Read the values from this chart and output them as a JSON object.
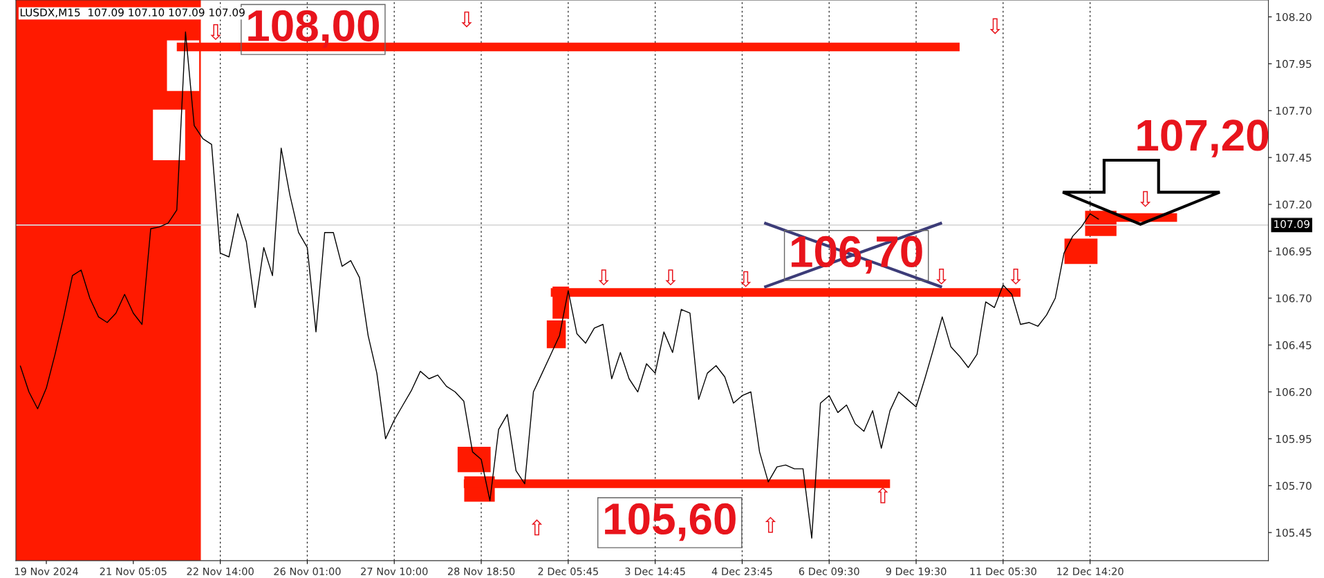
{
  "chart_data": {
    "type": "line",
    "title": "LUSDX,M15  107.09 107.10 107.09 107.09",
    "categories": [
      null,
      null,
      null,
      "19 Nov 2024",
      null,
      null,
      null,
      null,
      null,
      null,
      null,
      null,
      null,
      "21 Nov 05:05",
      null,
      null,
      null,
      null,
      null,
      null,
      null,
      null,
      null,
      "22 Nov 14:00",
      null,
      null,
      null,
      null,
      null,
      null,
      null,
      null,
      null,
      "26 Nov 01:00",
      null,
      null,
      null,
      null,
      null,
      null,
      null,
      null,
      null,
      "27 Nov 10:00",
      null,
      null,
      null,
      null,
      null,
      null,
      null,
      null,
      null,
      "28 Nov 18:50",
      null,
      null,
      null,
      null,
      null,
      null,
      null,
      null,
      null,
      "2 Dec 05:45",
      null,
      null,
      null,
      null,
      null,
      null,
      null,
      null,
      null,
      "3 Dec 14:45",
      null,
      null,
      null,
      null,
      null,
      null,
      null,
      null,
      null,
      "4 Dec 23:45",
      null,
      null,
      null,
      null,
      null,
      null,
      null,
      null,
      null,
      "6 Dec 09:30",
      null,
      null,
      null,
      null,
      null,
      null,
      null,
      null,
      null,
      "9 Dec 19:30",
      null,
      null,
      null,
      null,
      null,
      null,
      null,
      null,
      null,
      "11 Dec 05:30",
      null,
      null,
      null,
      null,
      null,
      null,
      null,
      null,
      null,
      "12 Dec 14:20",
      null,
      null,
      null,
      null,
      null,
      null,
      null,
      null,
      null,
      null,
      null,
      null,
      null,
      null,
      null,
      null,
      null,
      null,
      null,
      null
    ],
    "ylim": [
      105.3,
      108.29
    ],
    "yticks": [
      {
        "value": 105.45,
        "label": "105.45"
      },
      {
        "value": 105.7,
        "label": "105.70"
      },
      {
        "value": 105.95,
        "label": "105.95"
      },
      {
        "value": 106.2,
        "label": "106.20"
      },
      {
        "value": 106.45,
        "label": "106.45"
      },
      {
        "value": 106.7,
        "label": "106.70"
      },
      {
        "value": 106.95,
        "label": "106.95"
      },
      {
        "value": 107.2,
        "label": "107.20"
      },
      {
        "value": 107.45,
        "label": "107.45"
      },
      {
        "value": 107.7,
        "label": "107.70"
      },
      {
        "value": 107.95,
        "label": "107.95"
      },
      {
        "value": 108.2,
        "label": "108.20"
      }
    ],
    "grid": "x",
    "ref_lines": [
      {
        "axis": "y",
        "value": 107.09,
        "label": "107.09",
        "color": "#d8d8d8"
      }
    ],
    "series": [
      {
        "color": "#000000",
        "values": [
          106.34,
          106.2,
          106.11,
          106.22,
          106.4,
          106.6,
          106.82,
          106.85,
          106.7,
          106.6,
          106.57,
          106.62,
          106.72,
          106.62,
          106.56,
          107.07,
          107.08,
          107.1,
          107.17,
          108.12,
          107.62,
          107.55,
          107.52,
          106.94,
          106.92,
          107.15,
          107.0,
          106.65,
          106.97,
          106.82,
          107.5,
          107.25,
          107.05,
          106.97,
          106.52,
          107.05,
          107.05,
          106.87,
          106.9,
          106.81,
          106.5,
          106.3,
          105.95,
          106.05,
          106.13,
          106.21,
          106.31,
          106.27,
          106.29,
          106.23,
          106.2,
          106.15,
          105.88,
          105.84,
          105.62,
          106.0,
          106.08,
          105.78,
          105.71,
          106.2,
          106.3,
          106.4,
          106.5,
          106.74,
          106.51,
          106.46,
          106.54,
          106.56,
          106.27,
          106.41,
          106.27,
          106.2,
          106.35,
          106.3,
          106.52,
          106.41,
          106.64,
          106.62,
          106.16,
          106.3,
          106.34,
          106.28,
          106.14,
          106.18,
          106.2,
          105.88,
          105.72,
          105.8,
          105.81,
          105.79,
          105.79,
          105.42,
          106.14,
          106.18,
          106.09,
          106.13,
          106.03,
          105.99,
          106.1,
          105.9,
          106.1,
          106.2,
          106.16,
          106.12,
          106.27,
          106.43,
          106.6,
          106.44,
          106.39,
          106.33,
          106.4,
          106.68,
          106.65,
          106.77,
          106.72,
          106.56,
          106.57,
          106.55,
          106.61,
          106.7,
          106.94,
          107.03,
          107.08,
          107.15,
          107.12,
          null,
          null,
          null,
          null,
          null,
          null,
          null,
          null,
          null,
          null,
          null,
          null,
          null,
          null,
          null,
          null,
          null,
          null,
          null
        ]
      },
      {
        "color": "#ff1a00",
        "values": [
          null,
          null,
          null,
          null,
          null,
          null,
          null,
          null,
          null,
          null,
          null,
          null,
          null,
          null,
          null,
          null,
          null,
          null,
          108.04,
          108.04,
          108.04,
          108.04,
          108.04,
          108.04,
          108.04,
          108.04,
          108.04,
          108.04,
          108.04,
          108.04,
          108.04,
          108.04,
          108.04,
          108.04,
          108.04,
          108.04,
          108.04,
          108.04,
          108.04,
          108.04,
          108.04,
          108.04,
          108.04,
          108.04,
          108.04,
          108.04,
          108.04,
          108.04,
          108.04,
          108.04,
          108.04,
          108.04,
          108.04,
          108.04,
          108.04,
          108.04,
          108.04,
          108.04,
          108.04,
          108.04,
          108.04,
          108.04,
          108.04,
          108.04,
          108.04,
          108.04,
          108.04,
          108.04,
          108.04,
          108.04,
          108.04,
          108.04,
          108.04,
          108.04,
          108.04,
          108.04,
          108.04,
          108.04,
          108.04,
          108.04,
          108.04,
          108.04,
          108.04,
          108.04,
          108.04,
          108.04,
          108.04,
          108.04,
          108.04,
          108.04,
          108.04,
          108.04,
          108.04,
          108.04,
          108.04,
          108.04,
          108.04,
          108.04,
          108.04,
          108.04,
          108.04,
          108.04,
          108.04,
          108.04,
          108.04,
          108.04,
          108.04,
          108.04,
          108.04,
          null,
          null,
          null,
          null,
          null,
          null,
          null,
          null,
          null,
          null,
          null,
          null,
          null,
          null,
          null,
          null,
          null,
          null,
          null,
          null,
          null,
          null,
          null,
          null,
          null,
          null,
          null,
          null,
          null,
          null,
          null,
          null,
          null,
          null,
          null
        ]
      },
      {
        "color": "#ff1a00",
        "values": [
          null,
          null,
          null,
          null,
          null,
          null,
          null,
          null,
          null,
          null,
          null,
          null,
          null,
          null,
          null,
          null,
          null,
          null,
          null,
          null,
          null,
          null,
          null,
          null,
          null,
          null,
          null,
          null,
          null,
          null,
          null,
          null,
          null,
          null,
          null,
          null,
          null,
          null,
          null,
          null,
          null,
          null,
          null,
          null,
          null,
          null,
          null,
          null,
          null,
          null,
          null,
          null,
          null,
          null,
          null,
          null,
          null,
          null,
          null,
          null,
          null,
          106.73,
          106.73,
          106.73,
          106.73,
          106.73,
          106.73,
          106.73,
          106.73,
          106.73,
          106.73,
          106.73,
          106.73,
          106.73,
          106.73,
          106.73,
          106.73,
          106.73,
          106.73,
          106.73,
          106.73,
          106.73,
          106.73,
          106.73,
          106.73,
          106.73,
          106.73,
          106.73,
          106.73,
          106.73,
          106.73,
          106.73,
          106.73,
          106.73,
          106.73,
          106.73,
          106.73,
          106.73,
          106.73,
          106.73,
          106.73,
          106.73,
          106.73,
          106.73,
          106.73,
          106.73,
          106.73,
          106.73,
          106.73,
          106.73,
          106.73,
          106.73,
          106.73,
          106.73,
          106.73,
          106.73,
          null,
          null,
          null,
          null,
          null,
          null,
          null,
          null,
          null,
          null,
          null,
          null,
          null,
          null,
          null,
          null,
          null,
          null,
          null,
          null,
          null,
          null,
          null,
          null,
          null,
          null,
          null,
          null
        ]
      },
      {
        "color": "#ff1a00",
        "values": [
          null,
          null,
          null,
          null,
          null,
          null,
          null,
          null,
          null,
          null,
          null,
          null,
          null,
          null,
          null,
          null,
          null,
          null,
          null,
          null,
          null,
          null,
          null,
          null,
          null,
          null,
          null,
          null,
          null,
          null,
          null,
          null,
          null,
          null,
          null,
          null,
          null,
          null,
          null,
          null,
          null,
          null,
          null,
          null,
          null,
          null,
          null,
          null,
          null,
          null,
          null,
          105.71,
          105.71,
          105.71,
          105.71,
          105.71,
          105.71,
          105.71,
          105.71,
          105.71,
          105.71,
          105.71,
          105.71,
          105.71,
          105.71,
          105.71,
          105.71,
          105.71,
          105.71,
          105.71,
          105.71,
          105.71,
          105.71,
          105.71,
          105.71,
          105.71,
          105.71,
          105.71,
          105.71,
          105.71,
          105.71,
          105.71,
          105.71,
          105.71,
          105.71,
          105.71,
          105.71,
          105.71,
          105.71,
          105.71,
          105.71,
          105.71,
          105.71,
          105.71,
          105.71,
          105.71,
          105.71,
          105.71,
          105.71,
          105.71,
          105.71,
          null,
          null,
          null,
          null,
          null,
          null,
          null,
          null,
          null,
          null,
          null,
          null,
          null,
          null,
          null,
          null,
          null,
          null,
          null,
          null,
          null,
          null,
          null,
          null,
          null,
          null,
          null,
          null,
          null,
          null,
          null,
          null,
          null,
          null,
          null,
          null,
          null,
          null,
          null,
          null,
          null,
          null,
          null
        ]
      },
      {
        "color": "#ff1a00",
        "values": [
          null,
          null,
          null,
          null,
          null,
          null,
          null,
          null,
          null,
          null,
          null,
          null,
          null,
          null,
          null,
          null,
          null,
          null,
          null,
          null,
          null,
          null,
          null,
          null,
          null,
          null,
          null,
          null,
          null,
          null,
          null,
          null,
          null,
          null,
          null,
          null,
          null,
          null,
          null,
          null,
          null,
          null,
          null,
          null,
          null,
          null,
          null,
          null,
          null,
          null,
          null,
          null,
          null,
          null,
          null,
          null,
          null,
          null,
          null,
          null,
          null,
          null,
          null,
          null,
          null,
          null,
          null,
          null,
          null,
          null,
          null,
          null,
          null,
          null,
          null,
          null,
          null,
          null,
          null,
          null,
          null,
          null,
          null,
          null,
          null,
          null,
          null,
          null,
          null,
          null,
          null,
          null,
          null,
          null,
          null,
          null,
          null,
          null,
          null,
          null,
          null,
          null,
          null,
          null,
          null,
          null,
          null,
          null,
          null,
          null,
          null,
          null,
          null,
          null,
          null,
          null,
          null,
          null,
          null,
          null,
          null,
          null,
          null,
          107.13,
          107.13,
          107.13,
          107.13,
          107.13,
          107.13,
          107.13,
          107.13,
          107.13,
          107.13,
          107.13,
          null,
          null,
          null,
          null,
          null,
          null,
          null,
          null,
          null,
          null
        ]
      }
    ],
    "annotations": [
      "108,00",
      "105,60",
      "106,70",
      "107,20",
      "⇩",
      "⇩",
      "⇩",
      "⇩",
      "⇩",
      "⇩",
      "⇩",
      "⇩",
      "⇩",
      "⇧",
      "⇧",
      "⇧"
    ]
  }
}
